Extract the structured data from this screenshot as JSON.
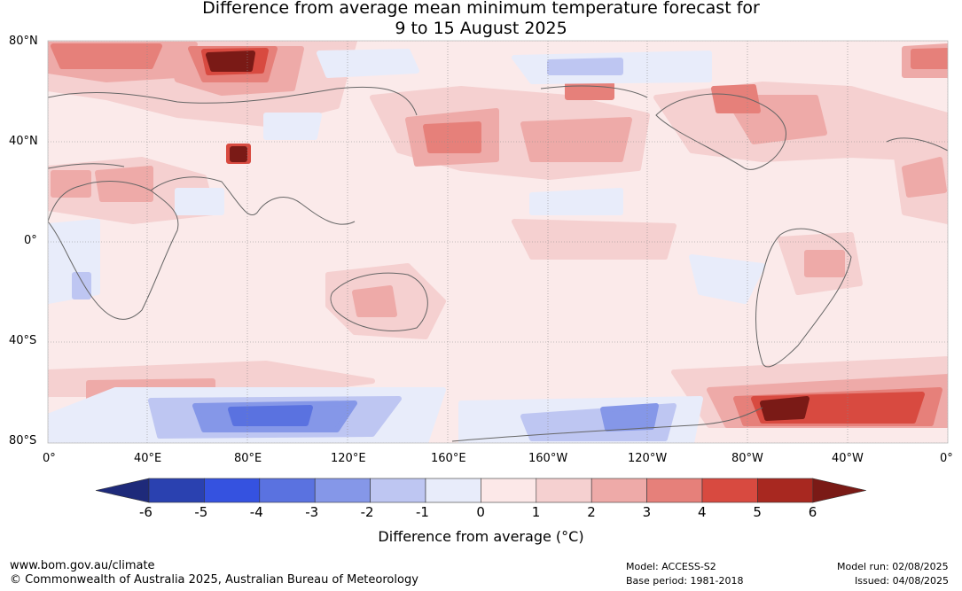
{
  "title_line1": "Difference from average mean minimum temperature forecast for",
  "title_line2": "9 to 15 August 2025",
  "lat_labels": [
    "80°N",
    "40°N",
    "0°",
    "40°S",
    "80°S"
  ],
  "lon_labels": [
    "0°",
    "40°E",
    "80°E",
    "120°E",
    "160°E",
    "160°W",
    "120°W",
    "80°W",
    "40°W",
    "0°"
  ],
  "colorbar": {
    "title": "Difference from average (°C)",
    "ticks": [
      "-6",
      "-5",
      "-4",
      "-3",
      "-2",
      "-1",
      "0",
      "1",
      "2",
      "3",
      "4",
      "5",
      "6"
    ],
    "colors": [
      "#1e2a7a",
      "#2a41b0",
      "#3552e0",
      "#5a72e0",
      "#8597e8",
      "#bec6f2",
      "#e8ecfa",
      "#fce8e8",
      "#f5d0d0",
      "#eeaaa8",
      "#e6807a",
      "#d84a40",
      "#a82820",
      "#7a1a16"
    ]
  },
  "map_colors": {
    "background": "#fbeaea",
    "warm_light": "#f5d0d0",
    "warm_mid": "#eeaaa8",
    "warm_strong": "#e6807a",
    "warm_very": "#d84a40",
    "warm_extreme": "#7a1a16",
    "cool_light": "#e8ecfa",
    "cool_mid": "#bec6f2",
    "cool_strong": "#8597e8",
    "cool_very": "#5a72e0",
    "coast": "#666666"
  },
  "footer": {
    "url": "www.bom.gov.au/climate",
    "copyright": "© Commonwealth of Australia 2025, Australian Bureau of Meteorology",
    "model": "Model: ACCESS-S2",
    "base_period": "Base period: 1981-2018",
    "model_run": "Model run: 02/08/2025",
    "issued": "Issued: 04/08/2025"
  }
}
